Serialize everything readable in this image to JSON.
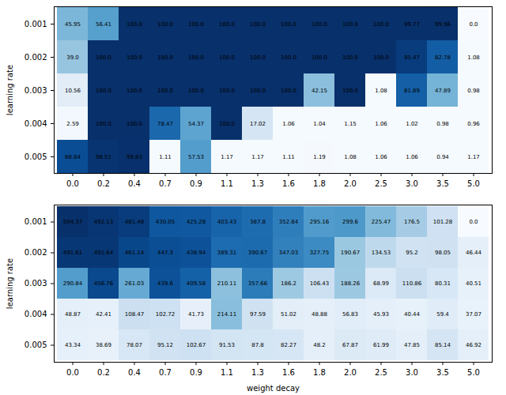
{
  "chart_data": [
    {
      "type": "heatmap",
      "y_label": "learning rate",
      "x": [
        "0.0",
        "0.2",
        "0.4",
        "0.7",
        "0.9",
        "1.1",
        "1.3",
        "1.6",
        "1.8",
        "2.0",
        "2.5",
        "3.0",
        "3.5",
        "5.0"
      ],
      "y": [
        "0.001",
        "0.002",
        "0.003",
        "0.004",
        "0.005"
      ],
      "values": [
        [
          45.95,
          56.41,
          100.0,
          100.0,
          100.0,
          100.0,
          100.0,
          100.0,
          100.0,
          100.0,
          100.0,
          99.77,
          99.96,
          0.0
        ],
        [
          39.0,
          100.0,
          100.0,
          100.0,
          100.0,
          100.0,
          100.0,
          100.0,
          100.0,
          100.0,
          100.0,
          95.47,
          82.78,
          1.08
        ],
        [
          10.56,
          100.0,
          100.0,
          100.0,
          100.0,
          100.0,
          100.0,
          100.0,
          42.15,
          100.0,
          1.08,
          81.89,
          47.89,
          0.98
        ],
        [
          2.59,
          100.0,
          100.0,
          78.47,
          54.37,
          100.0,
          17.02,
          1.06,
          1.04,
          1.15,
          1.06,
          1.02,
          0.98,
          0.96
        ],
        [
          88.84,
          98.51,
          99.83,
          1.11,
          57.53,
          1.17,
          1.17,
          1.11,
          1.19,
          1.08,
          1.06,
          1.06,
          0.94,
          1.17
        ]
      ],
      "value_labels": [
        [
          "45.95",
          "56.41",
          "100.0",
          "100.0",
          "100.0",
          "100.0",
          "100.0",
          "100.0",
          "100.0",
          "100.0",
          "100.0",
          "99.77",
          "99.96",
          "0.0"
        ],
        [
          "39.0",
          "100.0",
          "100.0",
          "100.0",
          "100.0",
          "100.0",
          "100.0",
          "100.0",
          "100.0",
          "100.0",
          "100.0",
          "95.47",
          "82.78",
          "1.08"
        ],
        [
          "10.56",
          "100.0",
          "100.0",
          "100.0",
          "100.0",
          "100.0",
          "100.0",
          "100.0",
          "42.15",
          "100.0",
          "1.08",
          "81.89",
          "47.89",
          "0.98"
        ],
        [
          "2.59",
          "100.0",
          "100.0",
          "78.47",
          "54.37",
          "100.0",
          "17.02",
          "1.06",
          "1.04",
          "1.15",
          "1.06",
          "1.02",
          "0.98",
          "0.96"
        ],
        [
          "88.84",
          "98.51",
          "99.83",
          "1.11",
          "57.53",
          "1.17",
          "1.17",
          "1.11",
          "1.19",
          "1.08",
          "1.06",
          "1.06",
          "0.94",
          "1.17"
        ]
      ],
      "color_range": [
        0,
        100
      ],
      "color": "Blues",
      "data_labels": true
    },
    {
      "type": "heatmap",
      "x_label": "weight decay",
      "y_label": "learning rate",
      "x": [
        "0.0",
        "0.2",
        "0.4",
        "0.7",
        "0.9",
        "1.1",
        "1.3",
        "1.6",
        "1.8",
        "2.0",
        "2.5",
        "3.0",
        "3.5",
        "5.0"
      ],
      "y": [
        "0.001",
        "0.002",
        "0.003",
        "0.004",
        "0.005"
      ],
      "values": [
        [
          504.37,
          492.13,
          481.48,
          430.05,
          425.28,
          403.43,
          387.8,
          352.84,
          295.16,
          299.6,
          225.47,
          176.5,
          101.28,
          0.0
        ],
        [
          491.61,
          491.64,
          461.14,
          447.3,
          438.94,
          389.31,
          390.67,
          347.03,
          327.75,
          190.67,
          134.53,
          95.2,
          98.05,
          46.44
        ],
        [
          290.84,
          456.76,
          261.03,
          439.6,
          409.58,
          210.11,
          357.66,
          186.2,
          106.43,
          188.26,
          68.99,
          110.86,
          80.31,
          40.51
        ],
        [
          48.87,
          42.41,
          108.47,
          102.72,
          41.73,
          214.11,
          97.59,
          51.02,
          48.88,
          56.83,
          45.93,
          40.44,
          59.4,
          37.07
        ],
        [
          43.34,
          38.69,
          78.07,
          95.12,
          102.67,
          91.53,
          87.8,
          82.27,
          48.2,
          67.87,
          61.99,
          47.85,
          85.14,
          46.92
        ]
      ],
      "value_labels": [
        [
          "504.37",
          "492.13",
          "481.48",
          "430.05",
          "425.28",
          "403.43",
          "387.8",
          "352.84",
          "295.16",
          "299.6",
          "225.47",
          "176.5",
          "101.28",
          "0.0"
        ],
        [
          "491.61",
          "491.64",
          "461.14",
          "447.3",
          "438.94",
          "389.31",
          "390.67",
          "347.03",
          "327.75",
          "190.67",
          "134.53",
          "95.2",
          "98.05",
          "46.44"
        ],
        [
          "290.84",
          "456.76",
          "261.03",
          "439.6",
          "409.58",
          "210.11",
          "357.66",
          "186.2",
          "106.43",
          "188.26",
          "68.99",
          "110.86",
          "80.31",
          "40.51"
        ],
        [
          "48.87",
          "42.41",
          "108.47",
          "102.72",
          "41.73",
          "214.11",
          "97.59",
          "51.02",
          "48.88",
          "56.83",
          "45.93",
          "40.44",
          "59.4",
          "37.07"
        ],
        [
          "43.34",
          "38.69",
          "78.07",
          "95.12",
          "102.67",
          "91.53",
          "87.8",
          "82.27",
          "48.2",
          "67.87",
          "61.99",
          "47.85",
          "85.14",
          "46.92"
        ]
      ],
      "color_range": [
        0,
        504.37
      ],
      "color": "Blues",
      "data_labels": true
    }
  ]
}
